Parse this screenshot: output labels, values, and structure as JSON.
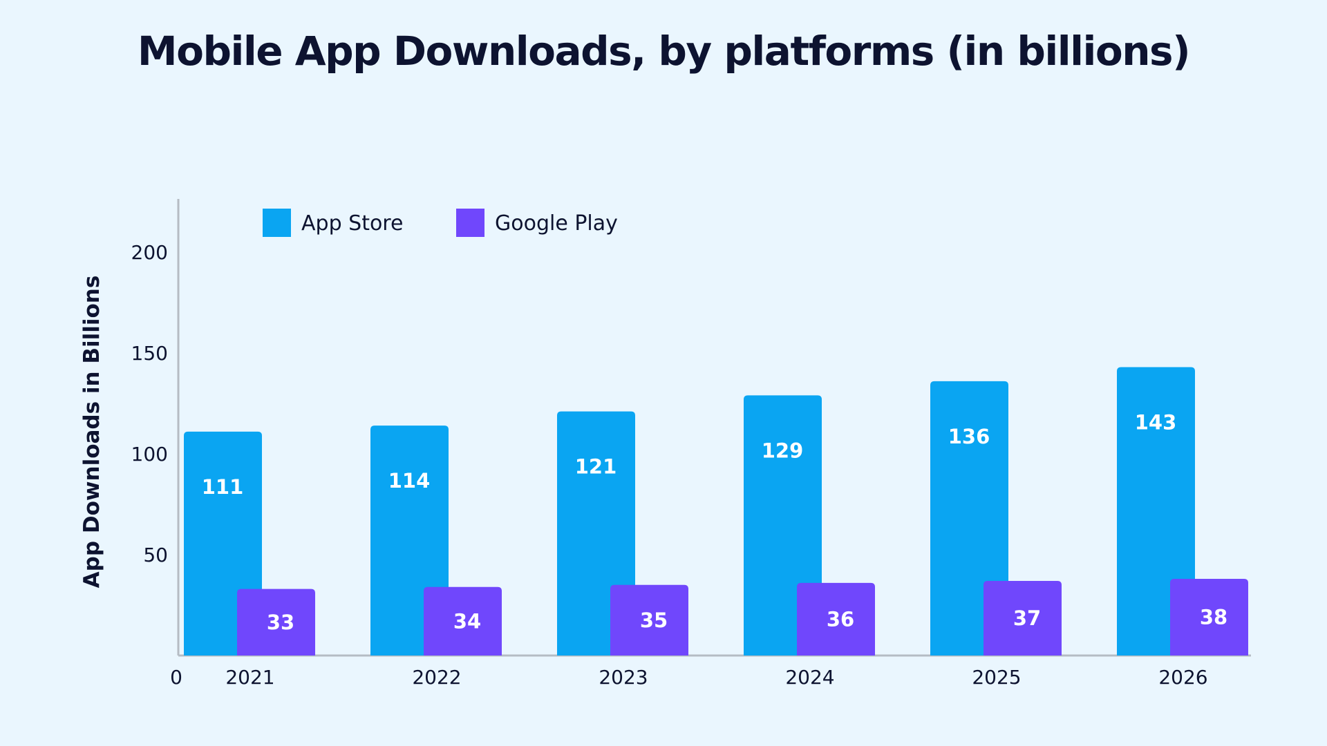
{
  "chart_data": {
    "type": "bar",
    "title": "Mobile App Downloads, by platforms (in billions)",
    "xlabel": "",
    "ylabel": "App Downloads  in Billions",
    "categories": [
      "2021",
      "2022",
      "2023",
      "2024",
      "2025",
      "2026"
    ],
    "series": [
      {
        "name": "App Store",
        "color": "#0aa5f2",
        "values": [
          111,
          114,
          121,
          129,
          136,
          143
        ]
      },
      {
        "name": "Google Play",
        "color": "#7047fc",
        "values": [
          33,
          34,
          35,
          36,
          37,
          38
        ]
      }
    ],
    "yticks": [
      0,
      50,
      100,
      150,
      200
    ],
    "ylim": [
      0,
      220
    ],
    "grid": false,
    "legend": "top-left",
    "data_labels": true
  }
}
